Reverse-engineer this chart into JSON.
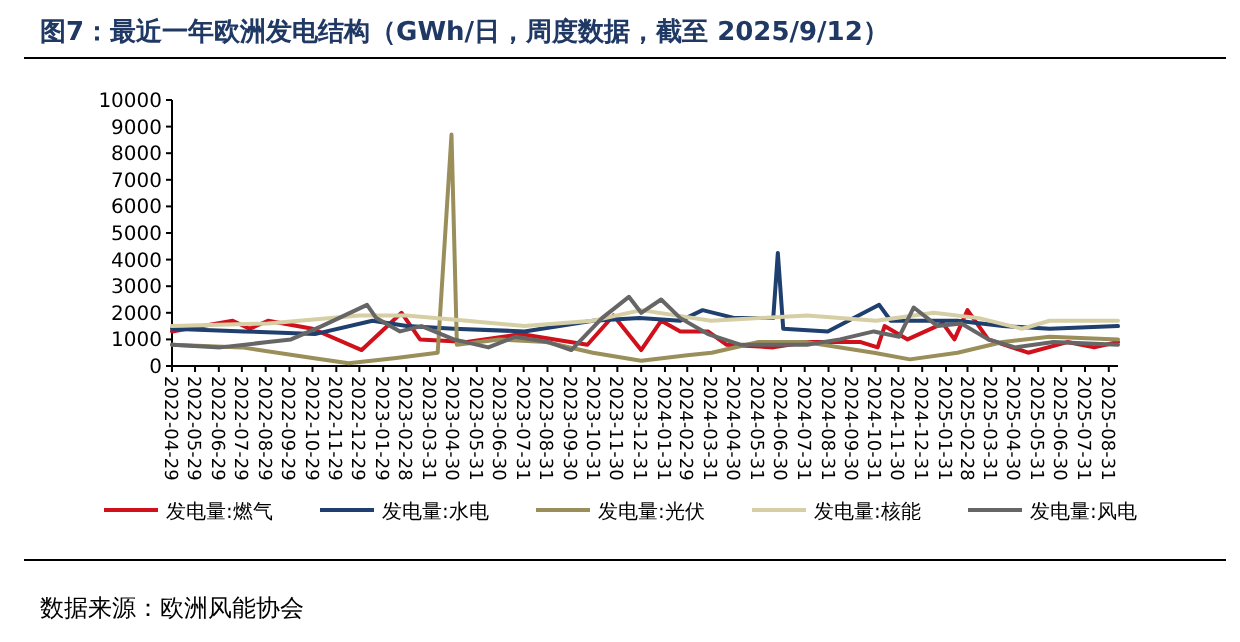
{
  "chart_data": {
    "type": "line",
    "title": "图7：最近一年欧洲发电结构（GWh/日，周度数据，截至 2025/9/12）",
    "annotations": [
      "数据来源：欧洲风能协会"
    ],
    "legend": "bottom",
    "xlim": [
      "2022-04-29",
      "2025-09-12"
    ],
    "ylim": [
      0,
      10000
    ],
    "yticks": [
      0,
      1000,
      2000,
      3000,
      4000,
      5000,
      6000,
      7000,
      8000,
      9000,
      10000
    ],
    "xticks": [
      "2022-04-29",
      "2022-05-29",
      "2022-06-29",
      "2022-07-29",
      "2022-08-29",
      "2022-09-29",
      "2022-10-29",
      "2022-11-29",
      "2022-12-29",
      "2023-01-29",
      "2023-02-28",
      "2023-03-31",
      "2023-04-30",
      "2023-05-31",
      "2023-06-30",
      "2023-07-31",
      "2023-08-31",
      "2023-09-30",
      "2023-10-31",
      "2023-11-30",
      "2023-12-31",
      "2024-01-31",
      "2024-02-29",
      "2024-03-31",
      "2024-04-30",
      "2024-05-31",
      "2024-06-30",
      "2024-07-31",
      "2024-08-31",
      "2024-09-30",
      "2024-10-31",
      "2024-11-30",
      "2024-12-31",
      "2025-01-31",
      "2025-02-28",
      "2025-03-31",
      "2025-04-30",
      "2025-05-31",
      "2025-06-30",
      "2025-07-31",
      "2025-08-31"
    ],
    "series": [
      {
        "name": "发电量:燃气",
        "color": "#d0101a",
        "x": [
          "2022-04-29",
          "2022-07-17",
          "2022-08-08",
          "2022-09-01",
          "2022-10-29",
          "2023-01-01",
          "2023-02-22",
          "2023-03-18",
          "2023-05-18",
          "2023-07-27",
          "2023-10-22",
          "2023-11-25",
          "2023-12-31",
          "2024-01-26",
          "2024-02-20",
          "2024-03-27",
          "2024-04-20",
          "2024-06-20",
          "2024-08-03",
          "2024-10-12",
          "2024-11-03",
          "2024-11-12",
          "2024-12-12",
          "2025-01-27",
          "2025-02-11",
          "2025-02-28",
          "2025-03-27",
          "2025-05-18",
          "2025-07-08",
          "2025-08-12",
          "2025-09-12"
        ],
        "values": [
          1300,
          1700,
          1400,
          1700,
          1400,
          600,
          2000,
          1000,
          900,
          1200,
          800,
          1900,
          600,
          1700,
          1300,
          1300,
          800,
          700,
          900,
          900,
          700,
          1500,
          1000,
          1600,
          1000,
          2100,
          1000,
          500,
          900,
          700,
          900
        ]
      },
      {
        "name": "发电量:水电",
        "color": "#1f3f6e",
        "x": [
          "2022-04-29",
          "2022-08-01",
          "2022-11-01",
          "2023-01-15",
          "2023-03-01",
          "2023-05-01",
          "2023-08-01",
          "2023-10-29",
          "2023-12-29",
          "2024-02-20",
          "2024-03-20",
          "2024-05-01",
          "2024-06-20",
          "2024-06-26",
          "2024-07-03",
          "2024-08-30",
          "2024-11-05",
          "2024-11-20",
          "2025-02-15",
          "2025-04-15",
          "2025-06-15",
          "2025-09-12"
        ],
        "values": [
          1400,
          1300,
          1200,
          1700,
          1500,
          1400,
          1300,
          1700,
          1800,
          1700,
          2100,
          1800,
          1800,
          4250,
          1400,
          1300,
          2300,
          1700,
          1700,
          1500,
          1400,
          1500
        ]
      },
      {
        "name": "发电量:光伏",
        "color": "#9a8f5a",
        "x": [
          "2022-04-29",
          "2022-07-29",
          "2022-10-29",
          "2022-12-15",
          "2023-02-15",
          "2023-04-10",
          "2023-04-28",
          "2023-05-05",
          "2023-06-29",
          "2023-08-29",
          "2023-10-29",
          "2023-12-31",
          "2024-02-29",
          "2024-04-01",
          "2024-06-01",
          "2024-08-01",
          "2024-10-29",
          "2024-12-15",
          "2025-02-15",
          "2025-04-15",
          "2025-06-15",
          "2025-09-12"
        ],
        "values": [
          800,
          700,
          300,
          100,
          300,
          500,
          8700,
          800,
          1000,
          900,
          500,
          200,
          400,
          500,
          900,
          900,
          500,
          250,
          500,
          900,
          1100,
          1000
        ]
      },
      {
        "name": "发电量:核能",
        "color": "#d6cfa6",
        "x": [
          "2022-04-29",
          "2022-09-01",
          "2022-12-29",
          "2023-02-28",
          "2023-05-18",
          "2023-08-01",
          "2023-10-29",
          "2023-12-31",
          "2024-03-31",
          "2024-08-03",
          "2024-11-01",
          "2025-01-15",
          "2025-03-15",
          "2025-05-10",
          "2025-06-15",
          "2025-09-12"
        ],
        "values": [
          1500,
          1600,
          1900,
          1900,
          1700,
          1500,
          1700,
          2100,
          1700,
          1900,
          1700,
          2000,
          1800,
          1400,
          1700,
          1700
        ]
      },
      {
        "name": "发电量:风电",
        "color": "#666666",
        "x": [
          "2022-04-29",
          "2022-07-01",
          "2022-09-01",
          "2022-10-01",
          "2022-11-10",
          "2023-01-08",
          "2023-01-20",
          "2023-02-20",
          "2023-03-20",
          "2023-05-01",
          "2023-06-15",
          "2023-07-20",
          "2023-09-01",
          "2023-10-01",
          "2023-11-10",
          "2023-12-15",
          "2023-12-31",
          "2024-01-26",
          "2024-02-20",
          "2024-03-27",
          "2024-05-08",
          "2024-08-03",
          "2024-09-15",
          "2024-10-29",
          "2024-12-01",
          "2024-12-20",
          "2025-01-20",
          "2025-02-20",
          "2025-03-27",
          "2025-05-01",
          "2025-06-20",
          "2025-09-12"
        ],
        "values": [
          800,
          700,
          900,
          1000,
          1500,
          2300,
          1800,
          1300,
          1500,
          1000,
          700,
          1100,
          900,
          600,
          1800,
          2600,
          2000,
          2500,
          1800,
          1200,
          800,
          800,
          1000,
          1300,
          1100,
          2200,
          1500,
          1600,
          1000,
          700,
          900,
          800
        ]
      }
    ]
  }
}
